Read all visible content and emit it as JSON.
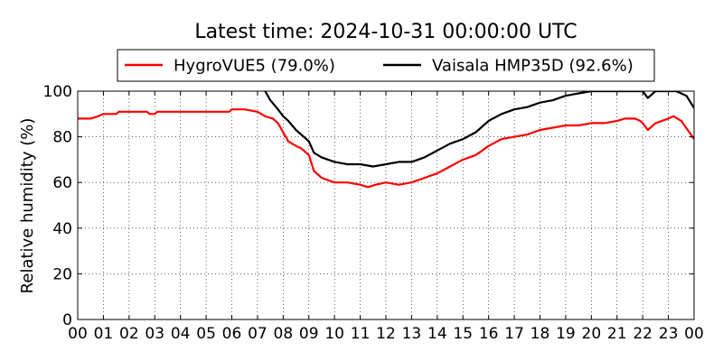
{
  "chart_data": {
    "type": "line",
    "title": "Latest time: 2024-10-31 00:00:00 UTC",
    "xlabel": "",
    "ylabel": "Relative humidity (%)",
    "xlim": [
      0,
      24
    ],
    "ylim": [
      0,
      100
    ],
    "grid": true,
    "legend_position": "top-center",
    "x_tick_labels": [
      "00",
      "01",
      "02",
      "03",
      "04",
      "05",
      "06",
      "07",
      "08",
      "09",
      "10",
      "11",
      "12",
      "13",
      "14",
      "15",
      "16",
      "17",
      "18",
      "19",
      "20",
      "21",
      "22",
      "23",
      "00"
    ],
    "y_tick_labels": [
      "0",
      "20",
      "40",
      "60",
      "80",
      "100"
    ],
    "series": [
      {
        "name": "HygroVUE5 (79.0%)",
        "color": "#ff0000",
        "x": [
          0,
          0.5,
          0.8,
          1,
          1.5,
          1.6,
          2,
          2.5,
          2.7,
          2.8,
          3,
          3.1,
          3.5,
          4,
          4.5,
          5,
          5.5,
          5.9,
          6,
          6.5,
          7,
          7.3,
          7.6,
          7.8,
          8,
          8.2,
          8.5,
          8.7,
          9,
          9.2,
          9.5,
          10,
          10.5,
          11,
          11.3,
          11.6,
          12,
          12.5,
          13,
          13.5,
          14,
          14.5,
          15,
          15.5,
          16,
          16.5,
          17,
          17.5,
          18,
          18.5,
          19,
          19.5,
          20,
          20.5,
          21,
          21.3,
          21.7,
          21.9,
          22,
          22.2,
          22.5,
          23,
          23.2,
          23.5,
          24
        ],
        "y": [
          88,
          88,
          89,
          90,
          90,
          91,
          91,
          91,
          91,
          90,
          90,
          91,
          91,
          91,
          91,
          91,
          91,
          91,
          92,
          92,
          91,
          89,
          88,
          86,
          82,
          78,
          76,
          75,
          72,
          65,
          62,
          60,
          60,
          59,
          58,
          59,
          60,
          59,
          60,
          62,
          64,
          67,
          70,
          72,
          76,
          79,
          80,
          81,
          83,
          84,
          85,
          85,
          86,
          86,
          87,
          88,
          88,
          87,
          86,
          83,
          86,
          88,
          89,
          87,
          79
        ]
      },
      {
        "name": "Vaisala HMP35D (92.6%)",
        "color": "#000000",
        "x": [
          7.3,
          7.5,
          7.8,
          8,
          8.2,
          8.5,
          8.8,
          9,
          9.2,
          9.5,
          10,
          10.5,
          11,
          11.5,
          12,
          12.5,
          13,
          13.5,
          14,
          14.5,
          15,
          15.5,
          16,
          16.5,
          17,
          17.5,
          18,
          18.5,
          19,
          19.5,
          20,
          20.5,
          21,
          21.5,
          22,
          22.2,
          22.5,
          23,
          23.3,
          23.7,
          24
        ],
        "y": [
          100,
          96,
          92,
          89,
          87,
          83,
          80,
          78,
          73,
          71,
          69,
          68,
          68,
          67,
          68,
          69,
          69,
          71,
          74,
          77,
          79,
          82,
          87,
          90,
          92,
          93,
          95,
          96,
          98,
          99,
          100,
          100,
          100,
          100,
          100,
          97,
          100,
          100,
          100,
          98,
          92.6
        ]
      }
    ]
  }
}
